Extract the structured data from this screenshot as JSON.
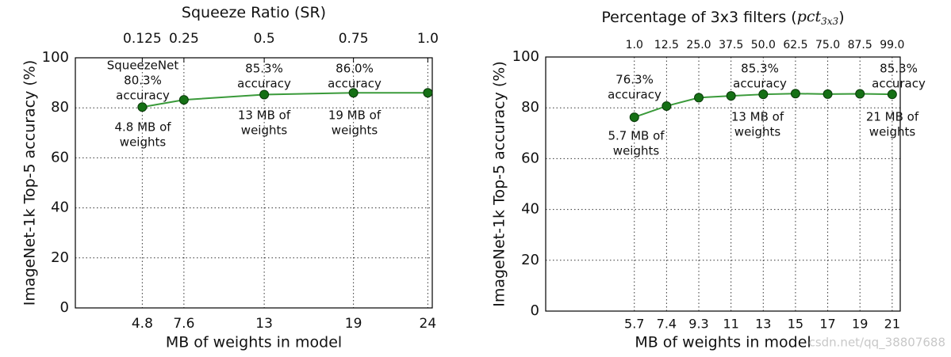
{
  "chart_data": [
    {
      "type": "line",
      "x2label": "Squeeze Ratio (SR)",
      "xlabel": "MB of weights in model",
      "ylabel": "ImageNet-1k Top-5 accuracy (%)",
      "x": [
        4.8,
        7.6,
        13,
        19,
        24
      ],
      "values": [
        80.3,
        83.2,
        85.3,
        86.0,
        86.0
      ],
      "color": "#3a9a3a",
      "marker_color": "#157015",
      "xlim": [
        0.3,
        24.3
      ],
      "xticks": [
        4.8,
        7.6,
        13,
        19,
        24
      ],
      "x2ticks": [
        {
          "value": 4.8,
          "label": "0.125"
        },
        {
          "value": 7.6,
          "label": "0.25"
        },
        {
          "value": 13,
          "label": "0.5"
        },
        {
          "value": 19,
          "label": "0.75"
        },
        {
          "value": 24,
          "label": "1.0"
        }
      ],
      "ylim": [
        0,
        100
      ],
      "yticks": [
        0,
        20,
        40,
        60,
        80,
        100
      ],
      "grid": true,
      "annotations": [
        [
          "SqueezeNet",
          "80.3%",
          "accuracy"
        ],
        [
          "4.8 MB of",
          "weights"
        ],
        [
          "85.3%",
          "accuracy"
        ],
        [
          "13 MB of",
          "weights"
        ],
        [
          "86.0%",
          "accuracy"
        ],
        [
          "19 MB of",
          "weights"
        ]
      ]
    },
    {
      "type": "line",
      "x2label": "Percentage of 3x3 filters (",
      "x2label_var": "pct",
      "x2label_sub": "3x3",
      "x2label_end": ")",
      "xlabel": "MB of weights in model",
      "ylabel": "ImageNet-1k Top-5 accuracy (%)",
      "categories": [
        "5.7",
        "7.4",
        "9.3",
        "11",
        "13",
        "15",
        "17",
        "19",
        "21"
      ],
      "x2categories": [
        "1.0",
        "12.5",
        "25.0",
        "37.5",
        "50.0",
        "62.5",
        "75.0",
        "87.5",
        "99.0"
      ],
      "values": [
        76.3,
        80.7,
        84.0,
        84.7,
        85.3,
        85.6,
        85.4,
        85.5,
        85.3
      ],
      "color": "#3a9a3a",
      "marker_color": "#157015",
      "ylim": [
        0,
        100
      ],
      "yticks": [
        0,
        20,
        40,
        60,
        80,
        100
      ],
      "grid": true,
      "annotations": [
        [
          "76.3%",
          "accuracy"
        ],
        [
          "5.7 MB of",
          "weights"
        ],
        [
          "85.3%",
          "accuracy"
        ],
        [
          "13 MB of",
          "weights"
        ],
        [
          "85.3%",
          "accuracy"
        ],
        [
          "21 MB of",
          "weights"
        ]
      ],
      "watermark": "csdn.net/qq_38807688"
    }
  ]
}
